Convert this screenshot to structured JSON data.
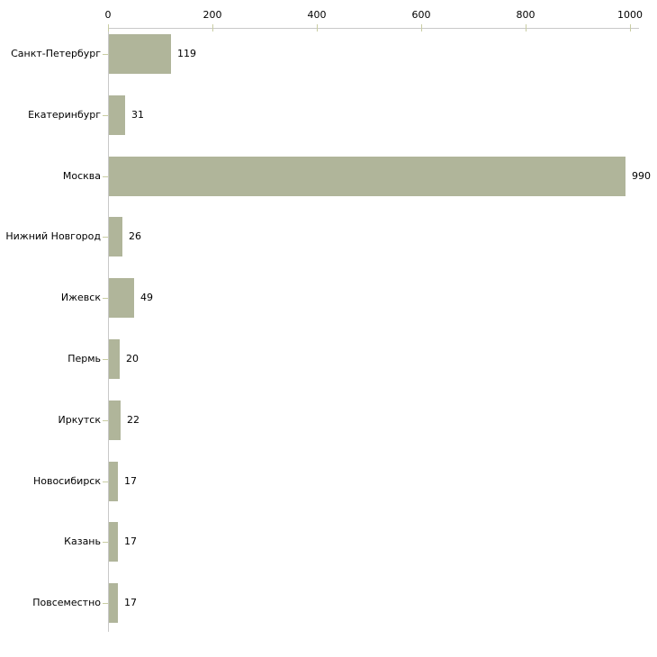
{
  "chart_data": {
    "type": "bar",
    "orientation": "horizontal",
    "categories": [
      "Санкт-Петербург",
      "Екатеринбург",
      "Москва",
      "Нижний Новгород",
      "Ижевск",
      "Пермь",
      "Иркутск",
      "Новосибирск",
      "Казань",
      "Повсеместно"
    ],
    "values": [
      119,
      31,
      990,
      26,
      49,
      20,
      22,
      17,
      17,
      17
    ],
    "x_ticks": [
      0,
      200,
      400,
      600,
      800,
      1000
    ],
    "xlim": [
      0,
      1000
    ],
    "title": "",
    "xlabel": "",
    "ylabel": "",
    "legend": null,
    "grid": "off",
    "value_labels_shown": true,
    "colors": {
      "bar_fill": "#b0b59a",
      "axis_line": "#c9c9c9",
      "tick_mark": "#c9cda3",
      "text": "#000000",
      "background": "#ffffff"
    }
  }
}
